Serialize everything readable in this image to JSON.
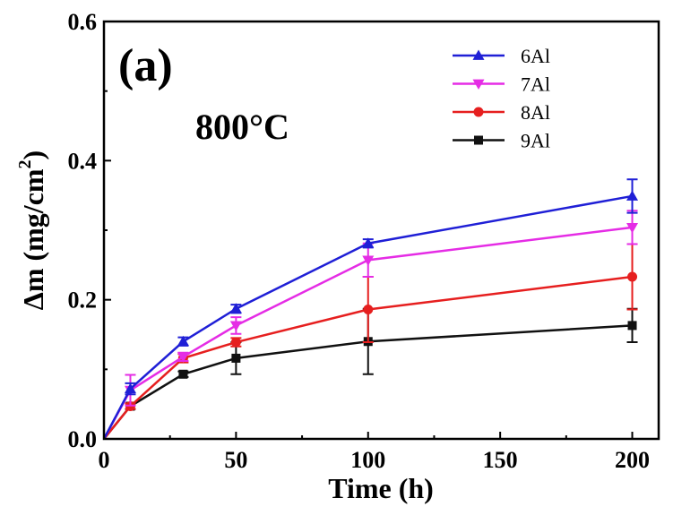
{
  "chart_data": {
    "type": "line",
    "panel_label": "(a)",
    "annotation": "800°C",
    "xlabel": "Time (h)",
    "ylabel_prefix": "Δm (mg/cm",
    "ylabel_sup": "2",
    "ylabel_suffix": ")",
    "xlim": [
      0,
      210
    ],
    "ylim": [
      0.0,
      0.6
    ],
    "xticks": [
      0,
      50,
      100,
      150,
      200
    ],
    "yticks": [
      0.0,
      0.2,
      0.4,
      0.6
    ],
    "xtick_labels": [
      "0",
      "50",
      "100",
      "150",
      "200"
    ],
    "ytick_labels": [
      "0.0",
      "0.2",
      "0.4",
      "0.6"
    ],
    "grid": false,
    "legend_position": "top-right",
    "x": [
      0,
      10,
      30,
      50,
      100,
      200
    ],
    "series": [
      {
        "name": "6Al",
        "color": "#1f1fd6",
        "marker": "triangle-up",
        "values": [
          0.0,
          0.072,
          0.14,
          0.187,
          0.281,
          0.349
        ],
        "errors": [
          0,
          0.008,
          0.006,
          0.006,
          0.006,
          0.024
        ]
      },
      {
        "name": "7Al",
        "color": "#e52ce5",
        "marker": "triangle-down",
        "values": [
          0.0,
          0.07,
          0.118,
          0.163,
          0.257,
          0.304
        ],
        "errors": [
          0,
          0.022,
          0.006,
          0.012,
          0.024,
          0.024
        ]
      },
      {
        "name": "8Al",
        "color": "#e61f1f",
        "marker": "circle",
        "values": [
          0.0,
          0.047,
          0.116,
          0.139,
          0.186,
          0.233
        ],
        "errors": [
          0,
          0.004,
          0.006,
          0.006,
          0.047,
          0.047
        ]
      },
      {
        "name": "9Al",
        "color": "#111111",
        "marker": "square",
        "values": [
          0.0,
          0.047,
          0.093,
          0.116,
          0.14,
          0.163
        ],
        "errors": [
          0,
          0.004,
          0.004,
          0.023,
          0.047,
          0.024
        ]
      }
    ]
  }
}
